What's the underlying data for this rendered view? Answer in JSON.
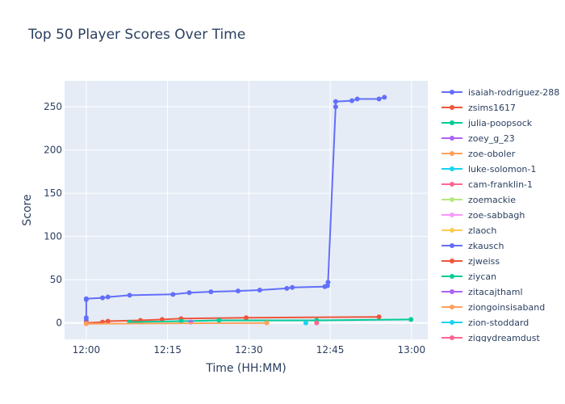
{
  "chart_data": {
    "type": "line",
    "title": "Top 50 Player Scores Over Time",
    "xlabel": "Time (HH:MM)",
    "ylabel": "Score",
    "xlim": [
      "11:56",
      "13:03"
    ],
    "ylim": [
      -19,
      280
    ],
    "x_ticks": [
      "12:00",
      "12:15",
      "12:30",
      "12:45",
      "13:00"
    ],
    "y_ticks": [
      0,
      50,
      100,
      150,
      200,
      250
    ],
    "grid": true,
    "legend_position": "right",
    "series": [
      {
        "name": "isaiah-rodriguez-288",
        "color": "#636efa",
        "points": [
          [
            "12:00",
            3
          ],
          [
            "12:00",
            6
          ],
          [
            "12:00",
            27
          ],
          [
            "12:00",
            28
          ],
          [
            "12:03",
            29
          ],
          [
            "12:04",
            30
          ],
          [
            "12:08",
            32
          ],
          [
            "12:16",
            33
          ],
          [
            "12:19",
            35
          ],
          [
            "12:23",
            36
          ],
          [
            "12:28",
            37
          ],
          [
            "12:32",
            38
          ],
          [
            "12:37",
            40
          ],
          [
            "12:38",
            41
          ],
          [
            "12:44",
            42
          ],
          [
            "12:44.5",
            43
          ],
          [
            "12:44.6",
            47
          ],
          [
            "12:46",
            250
          ],
          [
            "12:46",
            256
          ],
          [
            "12:49",
            257
          ],
          [
            "12:50",
            259
          ],
          [
            "12:54",
            259
          ],
          [
            "12:55",
            261
          ]
        ]
      },
      {
        "name": "zsims1617",
        "color": "#ef553b",
        "points": [
          [
            "12:00",
            0
          ],
          [
            "12:03",
            1
          ],
          [
            "12:04",
            2
          ],
          [
            "12:10",
            3
          ],
          [
            "12:14",
            4
          ],
          [
            "12:17.5",
            5
          ],
          [
            "12:29.5",
            6
          ],
          [
            "12:54",
            7
          ]
        ]
      },
      {
        "name": "julia-poopsock",
        "color": "#00cc96",
        "points": [
          [
            "12:08",
            1
          ],
          [
            "12:17.5",
            2
          ],
          [
            "12:24.5",
            3
          ],
          [
            "12:42.5",
            3
          ],
          [
            "12:59.9",
            4
          ]
        ]
      },
      {
        "name": "zoey_g_23",
        "color": "#ab63fa",
        "points": [
          [
            "12:19.3",
            1
          ]
        ]
      },
      {
        "name": "zoe-oboler",
        "color": "#ffa15a",
        "points": [
          [
            "12:00",
            -1
          ],
          [
            "12:33.3",
            0
          ]
        ]
      },
      {
        "name": "luke-solomon-1",
        "color": "#19d3f3",
        "points": [
          [
            "12:40.5",
            0
          ]
        ]
      },
      {
        "name": "cam-franklin-1",
        "color": "#ff6692",
        "points": [
          [
            "12:42.5",
            0
          ]
        ]
      },
      {
        "name": "zoemackie",
        "color": "#b6e880",
        "points": []
      },
      {
        "name": "zoe-sabbagh",
        "color": "#ff97ff",
        "points": []
      },
      {
        "name": "zlaoch",
        "color": "#fecb52",
        "points": []
      },
      {
        "name": "zkausch",
        "color": "#636efa",
        "points": []
      },
      {
        "name": "zjweiss",
        "color": "#ef553b",
        "points": []
      },
      {
        "name": "ziycan",
        "color": "#00cc96",
        "points": []
      },
      {
        "name": "zitacajthaml",
        "color": "#ab63fa",
        "points": []
      },
      {
        "name": "ziongoinsisaband",
        "color": "#ffa15a",
        "points": []
      },
      {
        "name": "zion-stoddard",
        "color": "#19d3f3",
        "points": []
      },
      {
        "name": "ziggydreamdust",
        "color": "#ff6692",
        "points": []
      }
    ]
  }
}
